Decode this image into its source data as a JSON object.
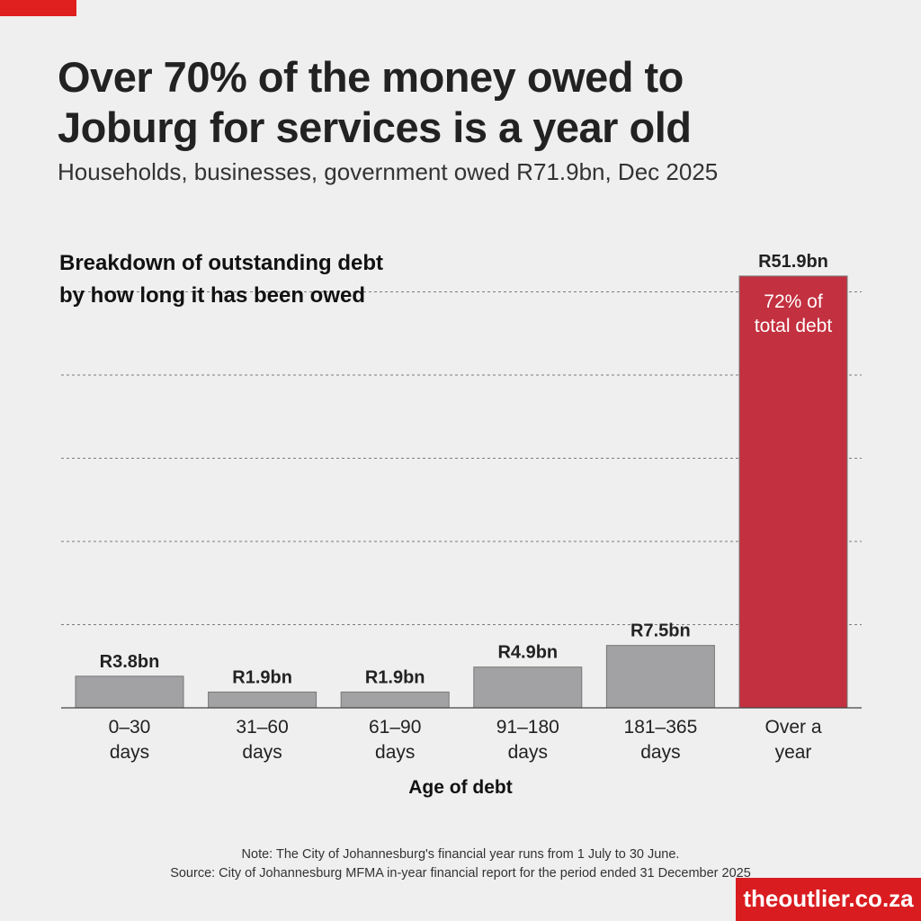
{
  "header": {
    "title_line1": "Over 70% of the money owed to",
    "title_line2": "Joburg for services is a year old",
    "subtitle": "Households, businesses, government owed R71.9bn, Dec 2025"
  },
  "chart_data": {
    "type": "bar",
    "title_lines": [
      "Breakdown of outstanding debt",
      "by how long it has been owed"
    ],
    "xlabel": "Age of debt",
    "ylabel": "",
    "unit": "R bn",
    "ylim": [
      0,
      55
    ],
    "grid": true,
    "gridlines": [
      10,
      20,
      30,
      40,
      50
    ],
    "categories": [
      [
        "0–30",
        "days"
      ],
      [
        "31–60",
        "days"
      ],
      [
        "61–90",
        "days"
      ],
      [
        "91–180",
        "days"
      ],
      [
        "181–365",
        "days"
      ],
      [
        "Over a",
        "year"
      ]
    ],
    "values": [
      3.8,
      1.9,
      1.9,
      4.9,
      7.5,
      51.9
    ],
    "data_labels": [
      "R3.8bn",
      "R1.9bn",
      "R1.9bn",
      "R4.9bn",
      "R7.5bn",
      "R51.9bn"
    ],
    "highlight_index": 5,
    "annotation_lines": [
      "72% of",
      "total debt"
    ],
    "colors": {
      "bar": "#a2a2a5",
      "highlight": "#c3303f",
      "grid": "#555555"
    }
  },
  "footer": {
    "note": "Note: The City of Johannesburg's financial year runs from 1 July to 30 June.",
    "source": "Source: City of Johannesburg MFMA in-year financial report for the period ended 31 December 2025",
    "brand": "theoutlier.co.za"
  }
}
